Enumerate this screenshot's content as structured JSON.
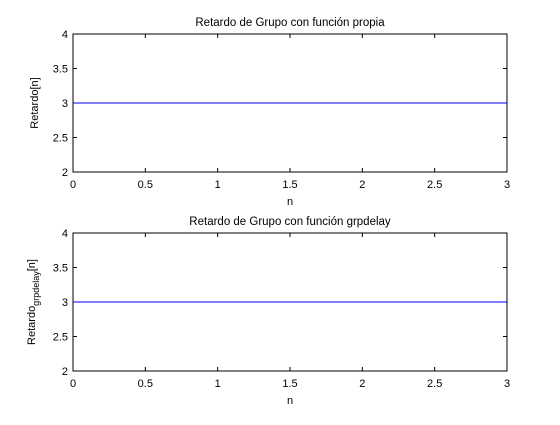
{
  "chart_data": [
    {
      "type": "line",
      "title": "Retardo de Grupo con función propia",
      "xlabel": "n",
      "ylabel": "Retardo[n]",
      "xlim": [
        0,
        3
      ],
      "ylim": [
        2,
        4
      ],
      "xticks": [
        "0",
        "0.5",
        "1",
        "1.5",
        "2",
        "2.5",
        "3"
      ],
      "yticks": [
        "2",
        "2.5",
        "3",
        "3.5",
        "4"
      ],
      "grid": false,
      "line_color": "#0000ff",
      "series": [
        {
          "x": [
            0,
            3
          ],
          "y": [
            3,
            3
          ]
        }
      ]
    },
    {
      "type": "line",
      "title": "Retardo de Grupo con función grpdelay",
      "xlabel": "n",
      "ylabel": "Retardo",
      "ylabel_subscript": "grpdelay",
      "ylabel_suffix": "[n]",
      "xlim": [
        0,
        3
      ],
      "ylim": [
        2,
        4
      ],
      "xticks": [
        "0",
        "0.5",
        "1",
        "1.5",
        "2",
        "2.5",
        "3"
      ],
      "yticks": [
        "2",
        "2.5",
        "3",
        "3.5",
        "4"
      ],
      "grid": false,
      "line_color": "#0000ff",
      "series": [
        {
          "x": [
            0,
            3
          ],
          "y": [
            3,
            3
          ]
        }
      ]
    }
  ]
}
